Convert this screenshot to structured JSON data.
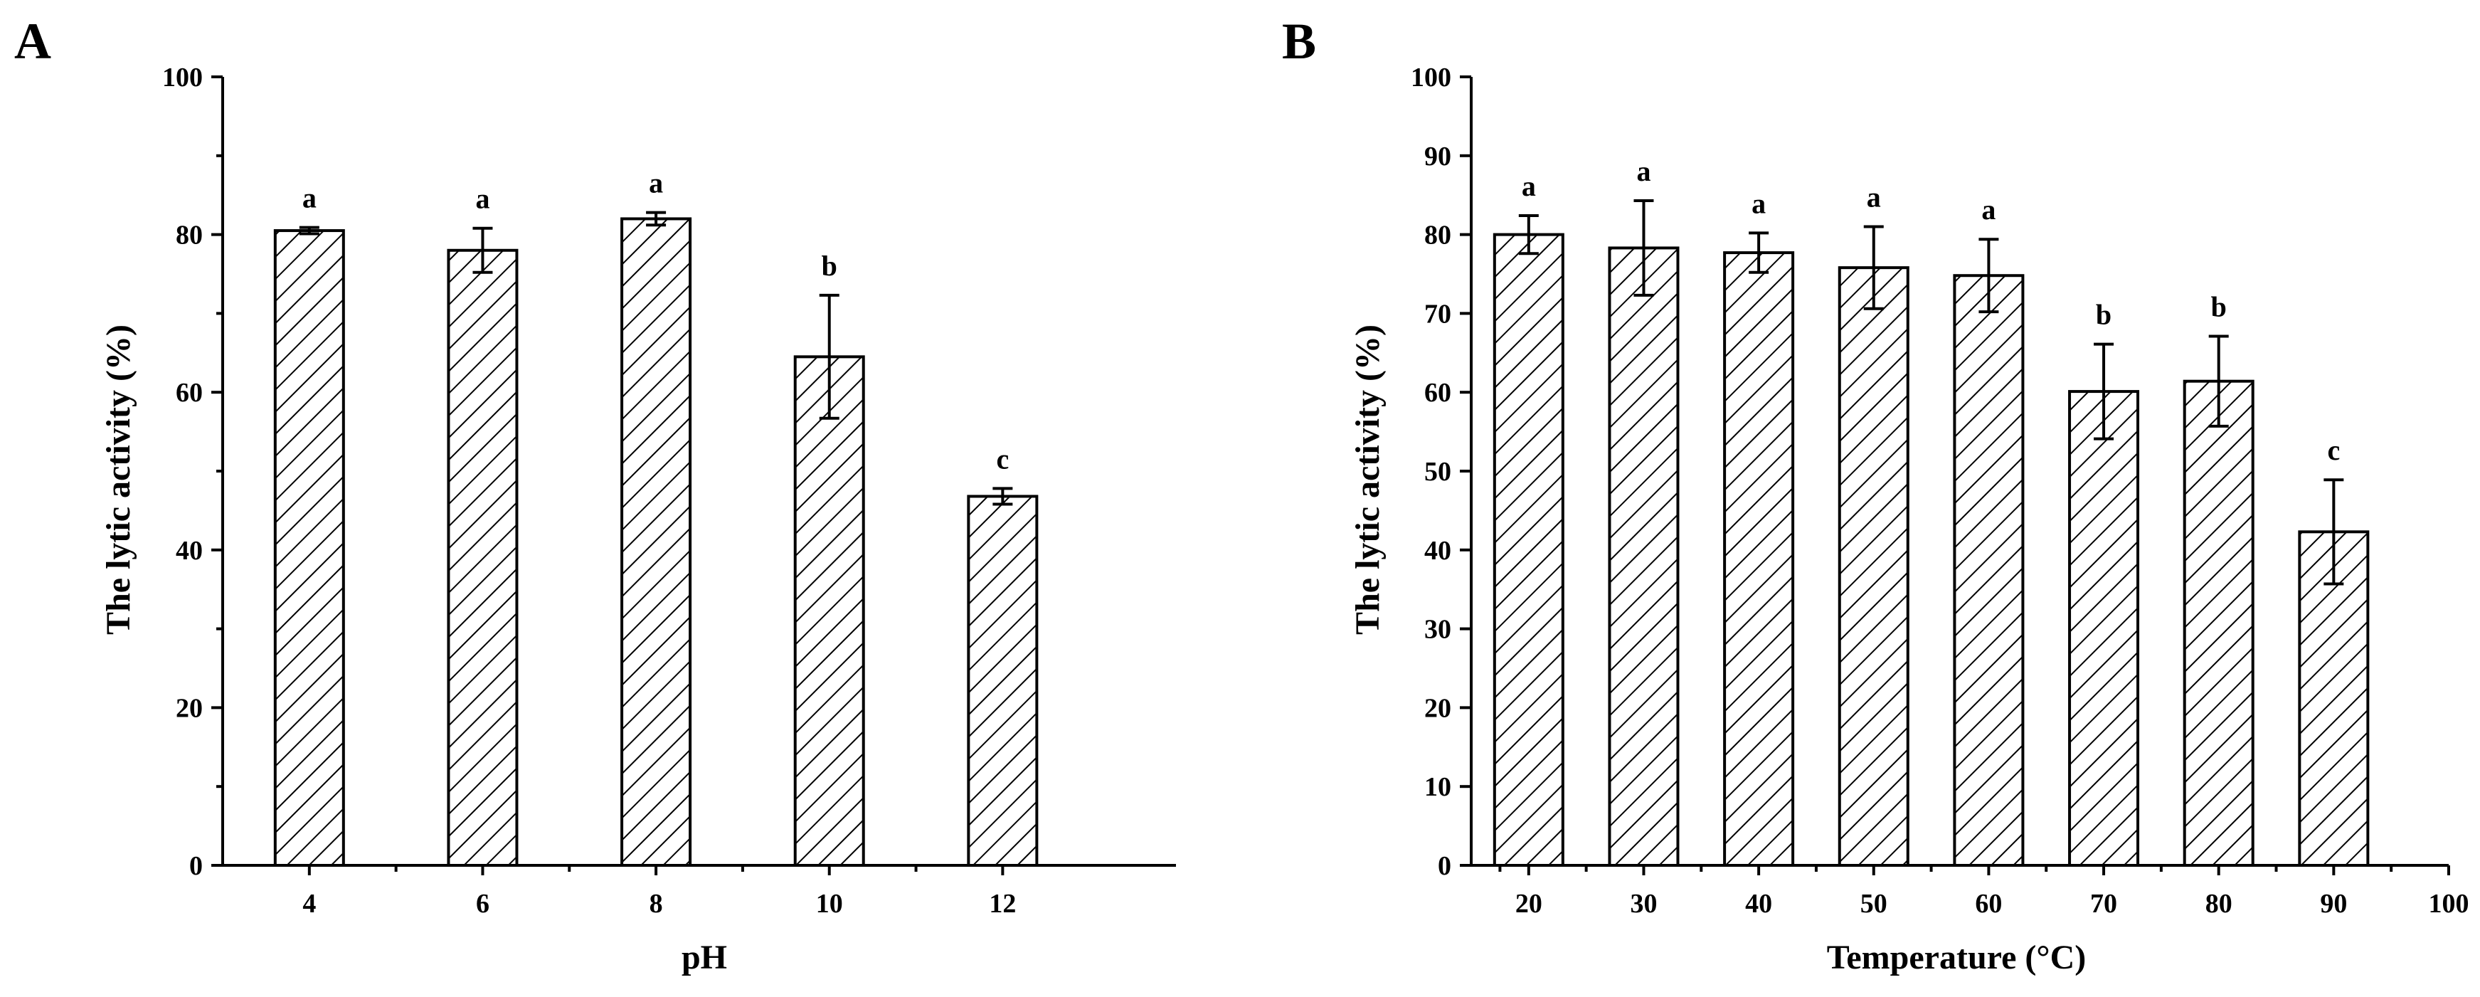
{
  "chart_data": [
    {
      "type": "bar",
      "panel_label": "A",
      "xlabel": "pH",
      "ylabel": "The lytic activity (%)",
      "ylim": [
        0,
        100
      ],
      "yticks": [
        0,
        20,
        40,
        60,
        80,
        100
      ],
      "categories": [
        "4",
        "6",
        "8",
        "10",
        "12"
      ],
      "values": [
        80.5,
        78,
        82,
        64.5,
        46.8
      ],
      "errors": [
        0.4,
        2.8,
        0.8,
        7.8,
        1.0
      ],
      "significance": [
        "a",
        "a",
        "a",
        "b",
        "c"
      ],
      "fill_pattern": "diagonal-hatch"
    },
    {
      "type": "bar",
      "panel_label": "B",
      "xlabel": "Temperature (°C)",
      "ylabel": "The lytic activity (%)",
      "ylim": [
        0,
        100
      ],
      "xlim": [
        15,
        100
      ],
      "yticks": [
        0,
        10,
        20,
        30,
        40,
        50,
        60,
        70,
        80,
        90,
        100
      ],
      "xticks": [
        20,
        30,
        40,
        50,
        60,
        70,
        80,
        90,
        100
      ],
      "x": [
        20,
        30,
        40,
        50,
        60,
        70,
        80,
        90
      ],
      "values": [
        80,
        78.3,
        77.7,
        75.8,
        74.8,
        60.1,
        61.4,
        42.3
      ],
      "errors": [
        2.4,
        6.0,
        2.5,
        5.2,
        4.6,
        6.0,
        5.7,
        6.6
      ],
      "significance": [
        "a",
        "a",
        "a",
        "a",
        "a",
        "b",
        "b",
        "c"
      ],
      "fill_pattern": "diagonal-hatch"
    }
  ]
}
